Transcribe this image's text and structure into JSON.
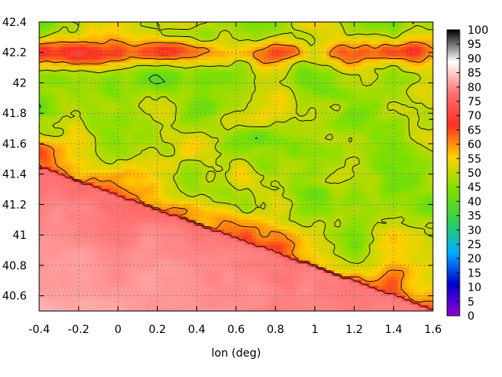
{
  "chart_data": {
    "type": "heatmap",
    "title": "",
    "xlabel": "lon (deg)",
    "ylabel": "",
    "xlim": [
      -0.4,
      1.6
    ],
    "ylim": [
      40.5,
      42.4
    ],
    "x_ticks": [
      "-0.4",
      "-0.2",
      "0",
      "0.2",
      "0.4",
      "0.6",
      "0.8",
      "1",
      "1.2",
      "1.4",
      "1.6"
    ],
    "x_tick_values": [
      -0.4,
      -0.2,
      0,
      0.2,
      0.4,
      0.6,
      0.8,
      1,
      1.2,
      1.4,
      1.6
    ],
    "y_ticks": [
      "40.6",
      "40.8",
      "41",
      "41.2",
      "41.4",
      "41.6",
      "41.8",
      "42",
      "42.2",
      "42.4"
    ],
    "y_tick_values": [
      40.6,
      40.8,
      41,
      41.2,
      41.4,
      41.6,
      41.8,
      42,
      42.2,
      42.4
    ],
    "colorbar": {
      "range": [
        0,
        100
      ],
      "ticks": [
        "0",
        "5",
        "10",
        "15",
        "20",
        "25",
        "30",
        "35",
        "40",
        "45",
        "50",
        "55",
        "60",
        "65",
        "70",
        "75",
        "80",
        "85",
        "90",
        "95",
        "100"
      ],
      "tick_values": [
        0,
        5,
        10,
        15,
        20,
        25,
        30,
        35,
        40,
        45,
        50,
        55,
        60,
        65,
        70,
        75,
        80,
        85,
        90,
        95,
        100
      ],
      "colors": [
        "#9400d3",
        "#0000cd",
        "#00b0ff",
        "#30d050",
        "#80e000",
        "#ffd000",
        "#ff3020",
        "#ff7070",
        "#ffffff",
        "#000000"
      ]
    },
    "grid": true,
    "contours": true,
    "legend": "colorbar-right"
  }
}
